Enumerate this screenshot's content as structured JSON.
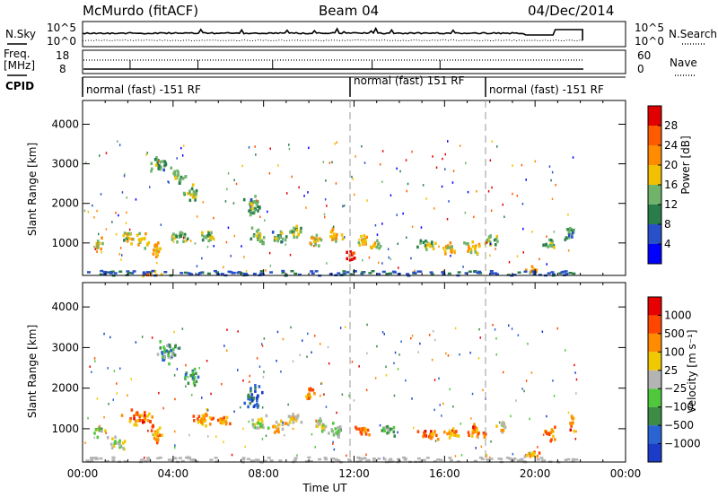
{
  "header": {
    "station": "McMurdo (fitACF)",
    "beam": "Beam 04",
    "date": "04/Dec/2014"
  },
  "noise_panel": {
    "left_label": "N.Sky",
    "right_label": "N.Search",
    "left_ticks": [
      "10^5",
      "10^0"
    ],
    "right_ticks": [
      "10^5",
      "10^0"
    ]
  },
  "freq_panel": {
    "left_label_1": "Freq.",
    "left_label_2": "[MHz]",
    "left_ticks": [
      "18",
      "8"
    ],
    "right_label": "Nave",
    "right_ticks": [
      "60",
      "0"
    ]
  },
  "cpid_panel": {
    "label": "CPID",
    "segments": [
      {
        "x_start": 0.0,
        "text": "normal (fast) -151 RF"
      },
      {
        "x_start": 12.0,
        "text": "normal (fast) 151 RF"
      },
      {
        "x_start": 18.0,
        "text": "normal (fast) -151 RF"
      }
    ]
  },
  "chart_data": [
    {
      "type": "heatmap",
      "name": "power",
      "ylabel": "Slant Range [km]",
      "xlim": [
        0,
        24
      ],
      "ylim": [
        180,
        4600
      ],
      "yticks": [
        "1000",
        "2000",
        "3000",
        "4000"
      ],
      "colorbar": {
        "label": "Power [dB]",
        "ticks": [
          "4",
          "8",
          "12",
          "16",
          "20",
          "24",
          "28"
        ],
        "range": [
          0,
          32
        ],
        "colors": [
          "#0000ff",
          "#2850c8",
          "#2a7d4a",
          "#6fb46a",
          "#f2c000",
          "#ff8c00",
          "#ff5a00",
          "#e00000"
        ]
      },
      "blobs": [
        {
          "t": 0.7,
          "r": 1000,
          "dt": 0.35,
          "dr": 220,
          "c": 0.6
        },
        {
          "t": 2.0,
          "r": 1200,
          "dt": 0.35,
          "dr": 250,
          "c": 0.5
        },
        {
          "t": 2.6,
          "r": 1100,
          "dt": 0.4,
          "dr": 250,
          "c": 0.55
        },
        {
          "t": 3.2,
          "r": 900,
          "dt": 0.35,
          "dr": 300,
          "c": 0.6
        },
        {
          "t": 3.5,
          "r": 3000,
          "dt": 0.6,
          "dr": 250,
          "c": 0.35
        },
        {
          "t": 4.2,
          "r": 2700,
          "dt": 0.5,
          "dr": 250,
          "c": 0.4
        },
        {
          "t": 4.8,
          "r": 2300,
          "dt": 0.5,
          "dr": 250,
          "c": 0.45
        },
        {
          "t": 4.2,
          "r": 1200,
          "dt": 0.6,
          "dr": 200,
          "c": 0.4
        },
        {
          "t": 5.5,
          "r": 1200,
          "dt": 0.5,
          "dr": 220,
          "c": 0.45
        },
        {
          "t": 7.5,
          "r": 2000,
          "dt": 0.5,
          "dr": 400,
          "c": 0.35
        },
        {
          "t": 7.7,
          "r": 1200,
          "dt": 0.5,
          "dr": 250,
          "c": 0.4
        },
        {
          "t": 8.6,
          "r": 1200,
          "dt": 0.5,
          "dr": 220,
          "c": 0.35
        },
        {
          "t": 9.3,
          "r": 1300,
          "dt": 0.5,
          "dr": 220,
          "c": 0.4
        },
        {
          "t": 10.2,
          "r": 1100,
          "dt": 0.4,
          "dr": 250,
          "c": 0.55
        },
        {
          "t": 11.1,
          "r": 1200,
          "dt": 0.45,
          "dr": 250,
          "c": 0.55
        },
        {
          "t": 11.8,
          "r": 700,
          "dt": 0.3,
          "dr": 220,
          "c": 0.9
        },
        {
          "t": 12.4,
          "r": 1100,
          "dt": 0.45,
          "dr": 220,
          "c": 0.6
        },
        {
          "t": 12.9,
          "r": 1000,
          "dt": 0.35,
          "dr": 200,
          "c": 0.5
        },
        {
          "t": 15.2,
          "r": 1000,
          "dt": 0.6,
          "dr": 200,
          "c": 0.45
        },
        {
          "t": 16.2,
          "r": 900,
          "dt": 0.5,
          "dr": 220,
          "c": 0.6
        },
        {
          "t": 17.2,
          "r": 900,
          "dt": 0.45,
          "dr": 250,
          "c": 0.55
        },
        {
          "t": 18.0,
          "r": 1100,
          "dt": 0.4,
          "dr": 250,
          "c": 0.45
        },
        {
          "t": 19.8,
          "r": 350,
          "dt": 0.6,
          "dr": 130,
          "c": 0.65
        },
        {
          "t": 20.6,
          "r": 1000,
          "dt": 0.4,
          "dr": 250,
          "c": 0.4
        },
        {
          "t": 21.5,
          "r": 1300,
          "dt": 0.35,
          "dr": 300,
          "c": 0.35
        },
        {
          "t": 3.0,
          "r": 250,
          "dt": 0.6,
          "dr": 90,
          "c": 0.7
        }
      ]
    },
    {
      "type": "heatmap",
      "name": "velocity",
      "ylabel": "Slant Range [km]",
      "xlabel": "Time UT",
      "xlim": [
        0,
        24
      ],
      "ylim": [
        180,
        4600
      ],
      "yticks": [
        "1000",
        "2000",
        "3000",
        "4000"
      ],
      "xticks": [
        "00:00",
        "04:00",
        "08:00",
        "12:00",
        "16:00",
        "20:00",
        "00:00"
      ],
      "xtick_values": [
        0,
        4,
        8,
        12,
        16,
        20,
        24
      ],
      "colorbar": {
        "label": "Velocity [m s⁻¹]",
        "ticks": [
          "1000",
          "500",
          "100",
          "25",
          "−25",
          "−100",
          "−500",
          "−1000"
        ],
        "colors": [
          "#1a3cc8",
          "#2a64d2",
          "#3c8c46",
          "#4fc83c",
          "#b4b4b4",
          "#f0c800",
          "#ff8c00",
          "#ff4600",
          "#e60000"
        ]
      },
      "blobs": [
        {
          "t": 0.7,
          "r": 1000,
          "dt": 0.35,
          "dr": 220,
          "c": 0.45
        },
        {
          "t": 2.5,
          "r": 1300,
          "dt": 0.9,
          "dr": 250,
          "c": 0.8
        },
        {
          "t": 3.2,
          "r": 900,
          "dt": 0.4,
          "dr": 300,
          "c": 0.75
        },
        {
          "t": 3.8,
          "r": 2900,
          "dt": 0.7,
          "dr": 350,
          "c": 0.3
        },
        {
          "t": 4.8,
          "r": 2300,
          "dt": 0.5,
          "dr": 250,
          "c": 0.25
        },
        {
          "t": 5.3,
          "r": 1300,
          "dt": 0.7,
          "dr": 250,
          "c": 0.75
        },
        {
          "t": 6.2,
          "r": 1200,
          "dt": 0.4,
          "dr": 220,
          "c": 0.7
        },
        {
          "t": 7.5,
          "r": 1800,
          "dt": 0.5,
          "dr": 400,
          "c": 0.1
        },
        {
          "t": 7.8,
          "r": 1200,
          "dt": 0.5,
          "dr": 250,
          "c": 0.55
        },
        {
          "t": 8.6,
          "r": 1100,
          "dt": 0.5,
          "dr": 220,
          "c": 0.65
        },
        {
          "t": 9.4,
          "r": 1300,
          "dt": 0.5,
          "dr": 220,
          "c": 0.6
        },
        {
          "t": 10.0,
          "r": 1900,
          "dt": 0.35,
          "dr": 300,
          "c": 0.8
        },
        {
          "t": 10.5,
          "r": 1100,
          "dt": 0.4,
          "dr": 250,
          "c": 0.5
        },
        {
          "t": 11.2,
          "r": 1000,
          "dt": 0.45,
          "dr": 250,
          "c": 0.4
        },
        {
          "t": 12.3,
          "r": 1000,
          "dt": 0.5,
          "dr": 220,
          "c": 0.75
        },
        {
          "t": 13.4,
          "r": 1000,
          "dt": 0.5,
          "dr": 200,
          "c": 0.35
        },
        {
          "t": 15.2,
          "r": 900,
          "dt": 0.7,
          "dr": 200,
          "c": 0.8
        },
        {
          "t": 16.3,
          "r": 900,
          "dt": 0.5,
          "dr": 220,
          "c": 0.7
        },
        {
          "t": 17.4,
          "r": 950,
          "dt": 0.5,
          "dr": 250,
          "c": 0.8
        },
        {
          "t": 18.5,
          "r": 1100,
          "dt": 0.4,
          "dr": 250,
          "c": 0.55
        },
        {
          "t": 19.8,
          "r": 400,
          "dt": 0.6,
          "dr": 130,
          "c": 0.7
        },
        {
          "t": 20.6,
          "r": 900,
          "dt": 0.4,
          "dr": 250,
          "c": 0.75
        },
        {
          "t": 21.6,
          "r": 1200,
          "dt": 0.3,
          "dr": 250,
          "c": 0.8
        },
        {
          "t": 1.5,
          "r": 700,
          "dt": 0.6,
          "dr": 200,
          "c": 0.5
        }
      ]
    }
  ]
}
